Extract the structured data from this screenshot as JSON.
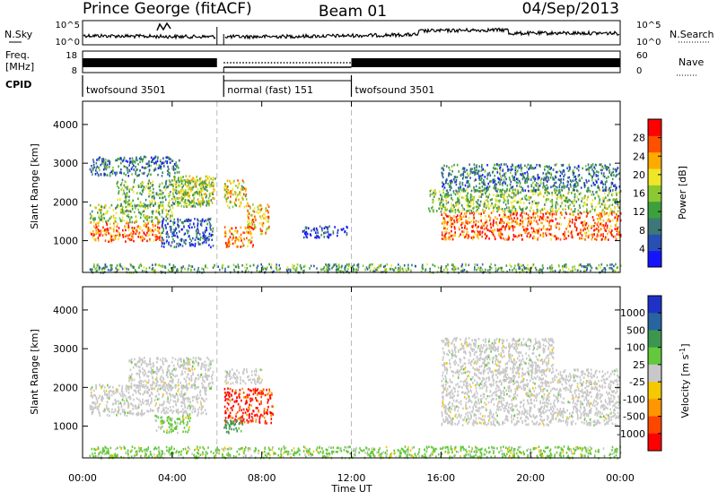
{
  "header": {
    "station": "Prince George (fitACF)",
    "beam": "Beam 01",
    "date": "04/Sep/2013"
  },
  "nsky_panel": {
    "left_label": "N.Sky",
    "right_label": "N.Search",
    "left_ticks": [
      "10^5",
      "10^0"
    ],
    "right_ticks": [
      "10^5",
      "10^0"
    ]
  },
  "freq_panel": {
    "left_label_line1": "Freq.",
    "left_label_line2": "[MHz]",
    "right_label": "Nave",
    "left_ticks": [
      "18",
      "8"
    ],
    "right_ticks": [
      "60",
      "0"
    ]
  },
  "cpid": {
    "label": "CPID",
    "segments": [
      {
        "name": "twofsound 3501",
        "start_hour": 0,
        "end_hour": 6
      },
      {
        "name": "normal (fast) 151",
        "start_hour": 6.3,
        "end_hour": 12
      },
      {
        "name": "twofsound 3501",
        "start_hour": 12,
        "end_hour": 24
      }
    ]
  },
  "chart_data": [
    {
      "type": "heatmap",
      "title": "",
      "xlabel": "",
      "ylabel": "Slant Range [km]",
      "xlim": [
        0,
        24
      ],
      "ylim": [
        180,
        4600
      ],
      "yticks": [
        "1000",
        "2000",
        "3000",
        "4000"
      ],
      "colorbar": {
        "label": "Power [dB]",
        "min": 0,
        "max": 32,
        "ticks": [
          "4",
          "8",
          "12",
          "16",
          "20",
          "24",
          "28"
        ],
        "colors": [
          "#1414ff",
          "#2850b4",
          "#3c7878",
          "#3ca03c",
          "#8cc832",
          "#f0e628",
          "#ffaa00",
          "#ff5000",
          "#ff0000"
        ]
      },
      "regions": [
        {
          "x": [
            0.3,
            3.6
          ],
          "y": [
            1000,
            1500
          ],
          "level": 26
        },
        {
          "x": [
            0.3,
            4.0
          ],
          "y": [
            1500,
            1950
          ],
          "level": 16
        },
        {
          "x": [
            1.5,
            5.8
          ],
          "y": [
            1900,
            2600
          ],
          "level": 14
        },
        {
          "x": [
            0.3,
            4.3
          ],
          "y": [
            2700,
            3200
          ],
          "level": 8
        },
        {
          "x": [
            4.0,
            5.9
          ],
          "y": [
            2000,
            2700
          ],
          "level": 18
        },
        {
          "x": [
            3.5,
            5.8
          ],
          "y": [
            850,
            1600
          ],
          "level": 6
        },
        {
          "x": [
            6.3,
            7.6
          ],
          "y": [
            850,
            1400
          ],
          "level": 24
        },
        {
          "x": [
            6.3,
            7.3
          ],
          "y": [
            1850,
            2600
          ],
          "level": 20
        },
        {
          "x": [
            7.3,
            8.3
          ],
          "y": [
            1200,
            2000
          ],
          "level": 22
        },
        {
          "x": [
            9.8,
            11.8
          ],
          "y": [
            1100,
            1400
          ],
          "level": 5
        },
        {
          "x": [
            15.4,
            24.0
          ],
          "y": [
            1750,
            2350
          ],
          "level": 15
        },
        {
          "x": [
            16.0,
            24.0
          ],
          "y": [
            1050,
            1750
          ],
          "level": 26
        },
        {
          "x": [
            16.0,
            24.0
          ],
          "y": [
            2300,
            3000
          ],
          "level": 9
        },
        {
          "x": [
            0.3,
            24.0
          ],
          "y": [
            200,
            420
          ],
          "level": 12
        }
      ]
    },
    {
      "type": "heatmap",
      "title": "",
      "xlabel": "Time UT",
      "ylabel": "Slant Range [km]",
      "xlim": [
        0,
        24
      ],
      "ylim": [
        180,
        4600
      ],
      "xticks": [
        "00:00",
        "04:00",
        "08:00",
        "12:00",
        "16:00",
        "20:00",
        "00:00"
      ],
      "yticks": [
        "1000",
        "2000",
        "3000",
        "4000"
      ],
      "colorbar": {
        "label": "Velocity [m s^-1]",
        "ticks": [
          "1000",
          "500",
          "100",
          "25",
          "-25",
          "-100",
          "-500",
          "-1000"
        ],
        "colors": [
          "#1e32c8",
          "#2864a0",
          "#3c9650",
          "#64c83c",
          "#c8c8c8",
          "#f5c800",
          "#ff9600",
          "#ff4600",
          "#ff0000"
        ]
      },
      "regions": [
        {
          "x": [
            0.3,
            5.5
          ],
          "y": [
            1300,
            2100
          ],
          "category": "-25..25"
        },
        {
          "x": [
            2.0,
            5.8
          ],
          "y": [
            2000,
            2800
          ],
          "category": "-25..25"
        },
        {
          "x": [
            3.2,
            4.8
          ],
          "y": [
            850,
            1300
          ],
          "category": "25..100"
        },
        {
          "x": [
            6.3,
            8.5
          ],
          "y": [
            1100,
            2000
          ],
          "category": "-500..-1000"
        },
        {
          "x": [
            6.3,
            7.2
          ],
          "y": [
            850,
            1200
          ],
          "category": "100..500"
        },
        {
          "x": [
            6.3,
            8.0
          ],
          "y": [
            2100,
            2500
          ],
          "category": "-25..25"
        },
        {
          "x": [
            16.0,
            24.0
          ],
          "y": [
            1050,
            2500
          ],
          "category": "-25..25"
        },
        {
          "x": [
            16.0,
            21.0
          ],
          "y": [
            2400,
            3300
          ],
          "category": "-25..25"
        },
        {
          "x": [
            0.3,
            24.0
          ],
          "y": [
            200,
            500
          ],
          "category": "25..100"
        }
      ]
    }
  ]
}
